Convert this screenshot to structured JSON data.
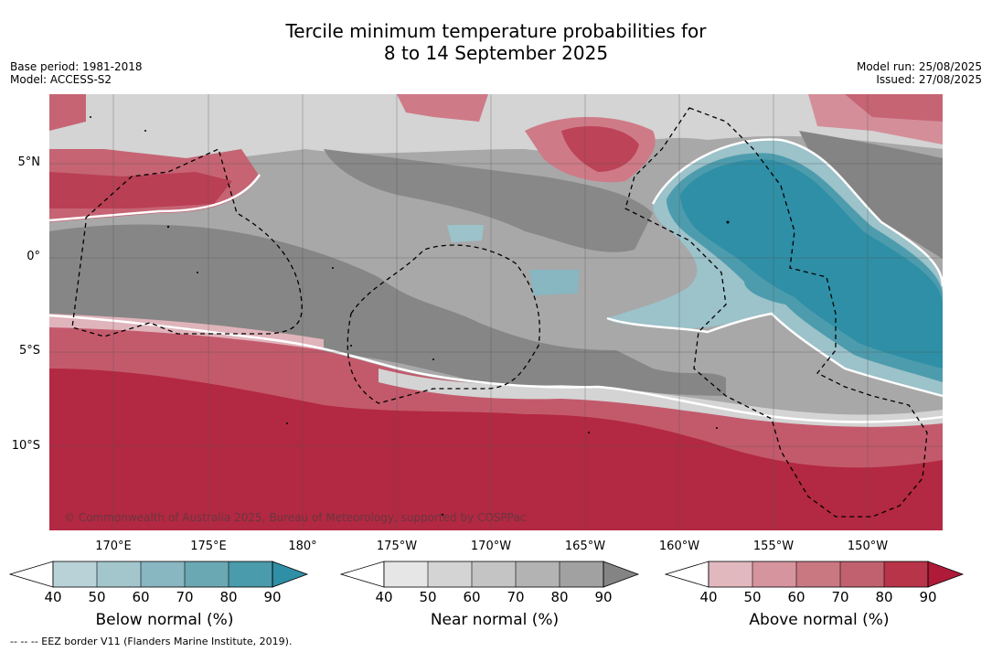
{
  "title_line1": "Tercile minimum temperature probabilities for",
  "title_line2": "8 to 14 September 2025",
  "meta_left": [
    "Base period: 1981-2018",
    "Model: ACCESS-S2"
  ],
  "meta_right": [
    "Model run: 25/08/2025",
    "Issued: 27/08/2025"
  ],
  "lat_labels": [
    "5°N",
    "0°",
    "5°S",
    "10°S"
  ],
  "lon_labels": [
    "170°E",
    "175°E",
    "180°",
    "175°W",
    "170°W",
    "165°W",
    "160°W",
    "155°W",
    "150°W"
  ],
  "copyright": "© Commonwealth of Australia 2025, Bureau of Meteorology, supported by COSPPac",
  "colorbars": [
    {
      "title": "Below normal (%)",
      "ticks": [
        "40",
        "50",
        "60",
        "70",
        "80",
        "90"
      ],
      "colors": [
        "#ffffff",
        "#b9d2d8",
        "#a3c6cd",
        "#88b6c1",
        "#6aa8b4",
        "#4a9bab",
        "#2e8fa6"
      ]
    },
    {
      "title": "Near normal (%)",
      "ticks": [
        "40",
        "50",
        "60",
        "70",
        "80",
        "90"
      ],
      "colors": [
        "#ffffff",
        "#e6e6e6",
        "#d4d4d4",
        "#c4c4c4",
        "#b3b3b3",
        "#a1a1a1",
        "#848484"
      ]
    },
    {
      "title": "Above normal (%)",
      "ticks": [
        "40",
        "50",
        "60",
        "70",
        "80",
        "90"
      ],
      "colors": [
        "#ffffff",
        "#e2b8bf",
        "#d6949e",
        "#c97882",
        "#c1606f",
        "#b83449",
        "#ae1a38"
      ]
    }
  ],
  "footnote": "--  --  -- EEZ border V11 (Flanders Marine Institute, 2019)."
}
